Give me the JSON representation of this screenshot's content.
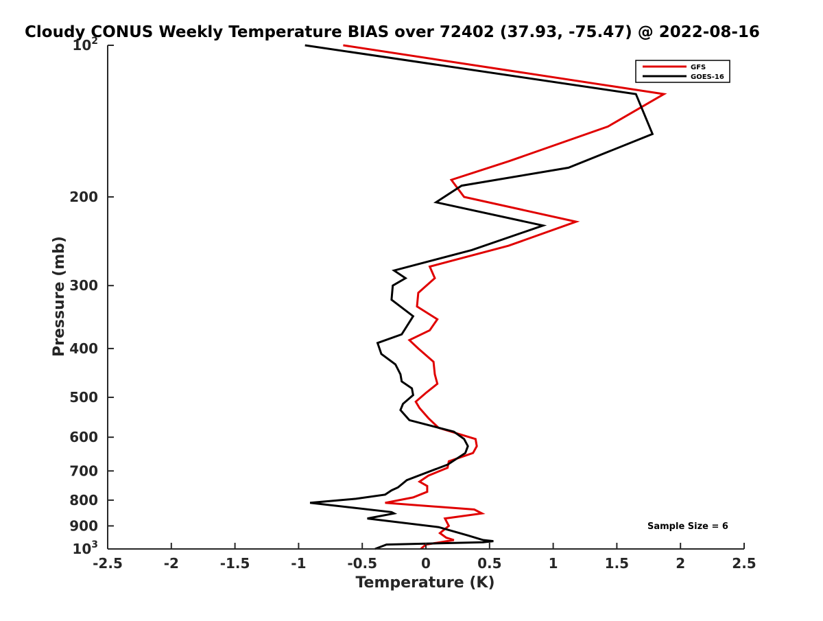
{
  "chart_data": {
    "type": "line",
    "title": "Cloudy CONUS Weekly Temperature BIAS over 72402 (37.93, -75.47) @ 2022-08-16",
    "xlabel": "Temperature (K)",
    "ylabel": "Pressure (mb)",
    "xlim": [
      -2.5,
      2.5
    ],
    "ylim": [
      100,
      1000
    ],
    "y_scale": "log",
    "y_reversed": true,
    "grid": false,
    "legend_position": "top-right",
    "annotation": "Sample Size = 6",
    "x_ticks": [
      {
        "value": -2.5,
        "label": "-2.5"
      },
      {
        "value": -2,
        "label": "-2"
      },
      {
        "value": -1.5,
        "label": "-1.5"
      },
      {
        "value": -1,
        "label": "-1"
      },
      {
        "value": -0.5,
        "label": "-0.5"
      },
      {
        "value": 0,
        "label": "0"
      },
      {
        "value": 0.5,
        "label": "0.5"
      },
      {
        "value": 1,
        "label": "1"
      },
      {
        "value": 1.5,
        "label": "1.5"
      },
      {
        "value": 2,
        "label": "2"
      },
      {
        "value": 2.5,
        "label": "2.5"
      }
    ],
    "y_ticks": [
      {
        "value": 100,
        "base": "10",
        "exp": "2"
      },
      {
        "value": 200,
        "label": "200"
      },
      {
        "value": 300,
        "label": "300"
      },
      {
        "value": 400,
        "label": "400"
      },
      {
        "value": 500,
        "label": "500"
      },
      {
        "value": 600,
        "label": "600"
      },
      {
        "value": 700,
        "label": "700"
      },
      {
        "value": 800,
        "label": "800"
      },
      {
        "value": 900,
        "label": "900"
      },
      {
        "value": 1000,
        "base": "10",
        "exp": "3"
      }
    ],
    "series": [
      {
        "name": "GFS",
        "color": "#e00000",
        "points": [
          [
            -0.65,
            100
          ],
          [
            1.87,
            125
          ],
          [
            1.43,
            145
          ],
          [
            0.65,
            170
          ],
          [
            0.2,
            185
          ],
          [
            0.3,
            200
          ],
          [
            1.18,
            224
          ],
          [
            0.65,
            250
          ],
          [
            0.03,
            275
          ],
          [
            0.07,
            290
          ],
          [
            -0.06,
            310
          ],
          [
            -0.07,
            330
          ],
          [
            0.09,
            350
          ],
          [
            0.03,
            368
          ],
          [
            -0.13,
            385
          ],
          [
            -0.06,
            400
          ],
          [
            0.06,
            425
          ],
          [
            0.07,
            450
          ],
          [
            0.09,
            470
          ],
          [
            0.0,
            490
          ],
          [
            -0.08,
            510
          ],
          [
            -0.05,
            525
          ],
          [
            0.02,
            550
          ],
          [
            0.1,
            575
          ],
          [
            0.39,
            605
          ],
          [
            0.4,
            625
          ],
          [
            0.37,
            645
          ],
          [
            0.18,
            670
          ],
          [
            0.17,
            690
          ],
          [
            0.02,
            715
          ],
          [
            -0.05,
            735
          ],
          [
            0.01,
            750
          ],
          [
            0.01,
            770
          ],
          [
            -0.1,
            790
          ],
          [
            -0.32,
            810
          ],
          [
            0.38,
            835
          ],
          [
            0.44,
            850
          ],
          [
            0.15,
            870
          ],
          [
            0.18,
            900
          ],
          [
            0.11,
            930
          ],
          [
            0.16,
            950
          ],
          [
            0.22,
            960
          ],
          [
            0.0,
            980
          ],
          [
            -0.04,
            1000
          ]
        ]
      },
      {
        "name": "GOES-16",
        "color": "#000000",
        "points": [
          [
            -0.95,
            100
          ],
          [
            1.65,
            125
          ],
          [
            1.78,
            150
          ],
          [
            1.12,
            175
          ],
          [
            0.28,
            190
          ],
          [
            0.08,
            205
          ],
          [
            0.92,
            228
          ],
          [
            0.36,
            255
          ],
          [
            -0.25,
            280
          ],
          [
            -0.16,
            290
          ],
          [
            -0.26,
            300
          ],
          [
            -0.27,
            320
          ],
          [
            -0.1,
            345
          ],
          [
            -0.19,
            375
          ],
          [
            -0.38,
            390
          ],
          [
            -0.35,
            410
          ],
          [
            -0.24,
            430
          ],
          [
            -0.2,
            450
          ],
          [
            -0.19,
            465
          ],
          [
            -0.11,
            480
          ],
          [
            -0.1,
            495
          ],
          [
            -0.18,
            515
          ],
          [
            -0.2,
            530
          ],
          [
            -0.13,
            555
          ],
          [
            0.22,
            585
          ],
          [
            0.3,
            605
          ],
          [
            0.33,
            625
          ],
          [
            0.31,
            645
          ],
          [
            0.17,
            680
          ],
          [
            -0.15,
            730
          ],
          [
            -0.22,
            755
          ],
          [
            -0.27,
            765
          ],
          [
            -0.32,
            780
          ],
          [
            -0.55,
            795
          ],
          [
            -0.91,
            810
          ],
          [
            -0.27,
            845
          ],
          [
            -0.25,
            850
          ],
          [
            -0.46,
            870
          ],
          [
            0.1,
            905
          ],
          [
            0.33,
            940
          ],
          [
            0.45,
            960
          ],
          [
            0.53,
            965
          ],
          [
            0.45,
            970
          ],
          [
            -0.31,
            980
          ],
          [
            -0.4,
            1000
          ]
        ]
      }
    ]
  }
}
